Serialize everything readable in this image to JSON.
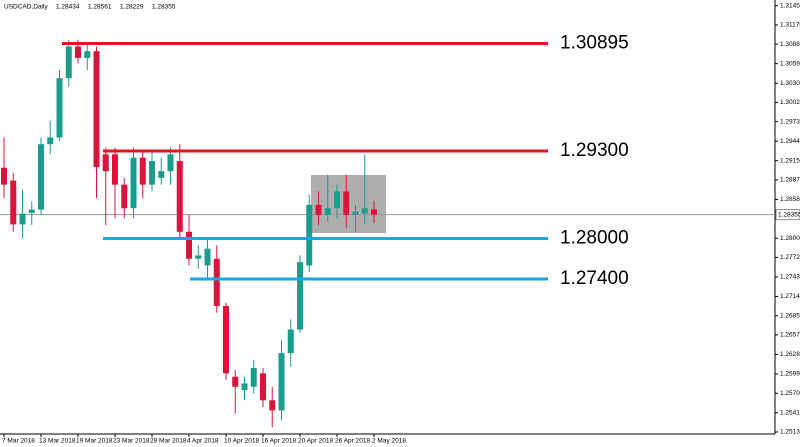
{
  "chart_data": {
    "type": "candlestick",
    "title": "USDCAD,Daily",
    "categories": [
      "7 Mar 2018",
      null,
      null,
      null,
      "13 Mar 2018",
      null,
      null,
      null,
      "19 Mar 2018",
      null,
      null,
      null,
      "23 Mar 2018",
      null,
      null,
      null,
      "29 Mar 2018",
      null,
      null,
      null,
      "4 Apr 2018",
      null,
      null,
      null,
      "10 Apr 2018",
      null,
      null,
      null,
      "16 Apr 2018",
      null,
      null,
      null,
      "20 Apr 2018",
      null,
      null,
      null,
      "26 Apr 2018",
      null,
      null,
      null,
      "2 May 2018"
    ],
    "open": [
      1.2905,
      1.2886,
      1.2821,
      1.2838,
      1.2843,
      1.294,
      1.295,
      1.3038,
      1.3085,
      1.3068,
      1.3078,
      1.2925,
      1.2925,
      1.288,
      1.2845,
      1.292,
      1.288,
      1.289,
      1.29,
      1.2915,
      1.281,
      1.277,
      1.276,
      1.277,
      1.27,
      1.2595,
      1.2575,
      1.258,
      1.26,
      1.256,
      1.2545,
      1.263,
      1.2665,
      1.276,
      1.285,
      1.2835,
      1.2845,
      1.287,
      1.2835,
      1.2837,
      1.28434
    ],
    "high": [
      1.295,
      1.2897,
      1.2872,
      1.2855,
      1.295,
      1.2975,
      1.305,
      1.3095,
      1.3095,
      1.309,
      1.3085,
      1.2935,
      1.2935,
      1.289,
      1.2935,
      1.2932,
      1.293,
      1.292,
      1.2935,
      1.294,
      1.2835,
      1.279,
      1.28,
      1.279,
      1.2705,
      1.2605,
      1.2595,
      1.262,
      1.2608,
      1.258,
      1.265,
      1.268,
      1.2775,
      1.2865,
      1.287,
      1.2895,
      1.288,
      1.2895,
      1.285,
      1.2925,
      1.28561
    ],
    "low": [
      1.286,
      1.281,
      1.28,
      1.282,
      1.2835,
      1.2925,
      1.2945,
      1.3025,
      1.306,
      1.305,
      1.286,
      1.282,
      1.283,
      1.283,
      1.283,
      1.286,
      1.287,
      1.288,
      1.288,
      1.28,
      1.276,
      1.2755,
      1.274,
      1.269,
      1.259,
      1.254,
      1.256,
      1.257,
      1.255,
      1.252,
      1.253,
      1.261,
      1.266,
      1.275,
      1.282,
      1.2825,
      1.283,
      1.2815,
      1.281,
      1.2822,
      1.28229
    ],
    "close": [
      1.288,
      1.2821,
      1.2837,
      1.2843,
      1.294,
      1.295,
      1.3038,
      1.3085,
      1.3068,
      1.3078,
      1.2906,
      1.29,
      1.288,
      1.2845,
      1.292,
      1.288,
      1.2915,
      1.29,
      1.2925,
      1.281,
      1.277,
      1.2775,
      1.2785,
      1.27,
      1.26,
      1.258,
      1.2585,
      1.2608,
      1.256,
      1.2545,
      1.263,
      1.2665,
      1.2765,
      1.285,
      1.2835,
      1.2845,
      1.287,
      1.2835,
      1.284,
      1.2845,
      1.28355
    ],
    "up_color": "#1a9e8c",
    "down_color": "#dc143c",
    "ylim": [
      1.251,
      1.3151
    ],
    "yticks": [
      1.31455,
      {
        "value": 1.3117,
        "label": "1.31170"
      },
      1.30885,
      1.30595,
      1.30305,
      {
        "value": 1.3002,
        "label": "1.30020"
      },
      1.29735,
      1.29445,
      1.29155,
      {
        "value": 1.2887,
        "label": "1.28870"
      },
      {
        "value": 1.2858,
        "label": "1.28580"
      },
      1.28005,
      {
        "value": 1.2772,
        "label": "1.27720"
      },
      {
        "value": 1.2743,
        "label": "1.27430"
      },
      {
        "value": 1.2714,
        "label": "1.27140"
      },
      1.26855,
      {
        "value": 1.2657,
        "label": "1.26570"
      },
      {
        "value": 1.2628,
        "label": "1.26280"
      },
      {
        "value": 1.2599,
        "label": "1.25990"
      },
      1.25705,
      1.25415,
      {
        "value": 1.2513,
        "label": "1.25130"
      }
    ],
    "levels": {
      "values": [
        1.30895,
        1.293,
        1.28,
        1.274
      ],
      "value_labels": [
        "1.30895",
        "1.29300",
        "1.28000",
        "1.27400"
      ],
      "colors": [
        "#e8131f",
        "#e8131f",
        "#19a7e8",
        "#19a7e8"
      ]
    }
  }
}
